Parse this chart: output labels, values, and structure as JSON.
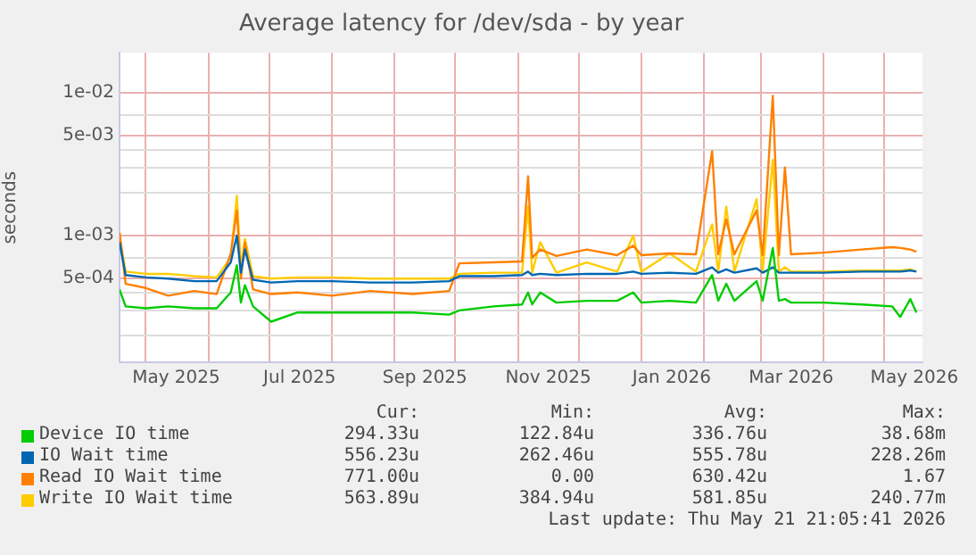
{
  "chart_data": {
    "type": "line",
    "title": "Average latency for /dev/sda - by year",
    "ylabel": "seconds",
    "log": "y",
    "grid": true,
    "legend": "bottom",
    "marker": "none",
    "line_style": "solid",
    "xlim": [
      "2025-04-18",
      "2026-05-20"
    ],
    "xticks": [
      {
        "value": "2025-05-01",
        "label": null
      },
      {
        "value": "2025-05-16",
        "label": "May 2025"
      },
      {
        "value": "2025-06-01",
        "label": null
      },
      {
        "value": "2025-07-01",
        "label": null
      },
      {
        "value": "2025-07-16",
        "label": "Jul 2025"
      },
      {
        "value": "2025-08-01",
        "label": null
      },
      {
        "value": "2025-09-01",
        "label": null
      },
      {
        "value": "2025-09-16",
        "label": "Sep 2025"
      },
      {
        "value": "2025-10-01",
        "label": null
      },
      {
        "value": "2025-11-01",
        "label": null
      },
      {
        "value": "2025-11-16",
        "label": "Nov 2025"
      },
      {
        "value": "2025-12-01",
        "label": null
      },
      {
        "value": "2026-01-01",
        "label": null
      },
      {
        "value": "2026-01-16",
        "label": "Jan 2026"
      },
      {
        "value": "2026-02-01",
        "label": null
      },
      {
        "value": "2026-03-01",
        "label": null
      },
      {
        "value": "2026-03-16",
        "label": "Mar 2026"
      },
      {
        "value": "2026-04-01",
        "label": null
      },
      {
        "value": "2026-05-01",
        "label": null
      },
      {
        "value": "2026-05-16",
        "label": "May 2026"
      }
    ],
    "ylim": [
      0.00013,
      0.019
    ],
    "yticks": [
      {
        "value": 0.0002,
        "label": null
      },
      {
        "value": 0.0003,
        "label": null
      },
      {
        "value": 0.0004,
        "label": null
      },
      {
        "value": 0.0005,
        "label": "5e-04"
      },
      {
        "value": 0.0007,
        "label": null
      },
      {
        "value": 0.001,
        "label": "1e-03"
      },
      {
        "value": 0.002,
        "label": null
      },
      {
        "value": 0.003,
        "label": null
      },
      {
        "value": 0.004,
        "label": null
      },
      {
        "value": 0.005,
        "label": "5e-03"
      },
      {
        "value": 0.007,
        "label": null
      },
      {
        "value": 0.01,
        "label": "1e-02"
      }
    ],
    "x": [
      "2025-04-18",
      "2025-04-21",
      "2025-05-01",
      "2025-05-12",
      "2025-05-25",
      "2025-06-05",
      "2025-06-12",
      "2025-06-15",
      "2025-06-17",
      "2025-06-19",
      "2025-06-23",
      "2025-07-02",
      "2025-07-15",
      "2025-08-01",
      "2025-08-20",
      "2025-09-10",
      "2025-09-28",
      "2025-10-03",
      "2025-10-20",
      "2025-11-03",
      "2025-11-06",
      "2025-11-08",
      "2025-11-12",
      "2025-11-20",
      "2025-12-05",
      "2025-12-20",
      "2025-12-28",
      "2026-01-01",
      "2026-01-15",
      "2026-01-28",
      "2026-02-05",
      "2026-02-08",
      "2026-02-12",
      "2026-02-16",
      "2026-02-27",
      "2026-03-02",
      "2026-03-07",
      "2026-03-10",
      "2026-03-13",
      "2026-03-16",
      "2026-04-01",
      "2026-04-20",
      "2026-05-05",
      "2026-05-09",
      "2026-05-14",
      "2026-05-17"
    ],
    "series": [
      {
        "name": "Device IO time",
        "color": "#00cc00",
        "values": [
          0.00042,
          0.00032,
          0.00031,
          0.00032,
          0.00031,
          0.00031,
          0.0004,
          0.00062,
          0.00034,
          0.00045,
          0.00032,
          0.00025,
          0.00029,
          0.00029,
          0.00029,
          0.00029,
          0.00028,
          0.0003,
          0.00032,
          0.00033,
          0.0004,
          0.00033,
          0.0004,
          0.00034,
          0.00035,
          0.00035,
          0.0004,
          0.00034,
          0.00035,
          0.00034,
          0.00053,
          0.00035,
          0.00046,
          0.00035,
          0.00048,
          0.00035,
          0.00082,
          0.00035,
          0.00036,
          0.00034,
          0.00034,
          0.00033,
          0.00032,
          0.00027,
          0.00036,
          0.00029
        ]
      },
      {
        "name": "IO Wait time",
        "color": "#0066b3",
        "values": [
          0.0009,
          0.00053,
          0.00051,
          0.0005,
          0.00048,
          0.00048,
          0.00065,
          0.001,
          0.00055,
          0.0008,
          0.00049,
          0.00047,
          0.00048,
          0.00048,
          0.00047,
          0.00047,
          0.00048,
          0.00052,
          0.00052,
          0.00053,
          0.00056,
          0.00053,
          0.00054,
          0.00053,
          0.00054,
          0.00054,
          0.00056,
          0.00054,
          0.00055,
          0.00054,
          0.0006,
          0.00055,
          0.00058,
          0.00055,
          0.00059,
          0.00055,
          0.0006,
          0.00055,
          0.00055,
          0.00055,
          0.00055,
          0.00056,
          0.00056,
          0.00056,
          0.00057,
          0.00056
        ]
      },
      {
        "name": "Read IO Wait time",
        "color": "#ff8000",
        "values": [
          0.00105,
          0.00046,
          0.00043,
          0.00038,
          0.00041,
          0.00039,
          0.00075,
          0.0015,
          0.0005,
          0.0009,
          0.00042,
          0.00039,
          0.0004,
          0.00038,
          0.00041,
          0.00039,
          0.00041,
          0.00064,
          0.00065,
          0.00066,
          0.0026,
          0.0007,
          0.0008,
          0.00072,
          0.0008,
          0.00073,
          0.00085,
          0.00073,
          0.00075,
          0.00074,
          0.0039,
          0.00074,
          0.0013,
          0.00074,
          0.0015,
          0.00073,
          0.0095,
          0.00073,
          0.003,
          0.00074,
          0.00076,
          0.0008,
          0.00083,
          0.00082,
          0.0008,
          0.00077
        ]
      },
      {
        "name": "Write IO Wait time",
        "color": "#ffcc00",
        "values": [
          0.001,
          0.00056,
          0.00054,
          0.00054,
          0.00052,
          0.00051,
          0.0007,
          0.0019,
          0.0006,
          0.00095,
          0.00052,
          0.0005,
          0.00051,
          0.00051,
          0.0005,
          0.0005,
          0.0005,
          0.00054,
          0.00055,
          0.00055,
          0.0016,
          0.00055,
          0.0009,
          0.00055,
          0.00065,
          0.00056,
          0.001,
          0.00056,
          0.00075,
          0.00056,
          0.0012,
          0.00056,
          0.0016,
          0.00056,
          0.0018,
          0.00056,
          0.0034,
          0.00056,
          0.0006,
          0.00056,
          0.00056,
          0.00057,
          0.00057,
          0.00057,
          0.00058,
          0.00056
        ]
      }
    ],
    "annotations": [
      "Cur:",
      "Min:",
      "Avg:",
      "Max:",
      "294.33u",
      "122.84u",
      "336.76u",
      "38.68m",
      "556.23u",
      "262.46u",
      "555.78u",
      "228.26m",
      "771.00u",
      "0.00",
      "630.42u",
      "1.67",
      "563.89u",
      "384.94u",
      "581.85u",
      "240.77m",
      "Last update: Thu May 21 21:05:41 2026"
    ]
  }
}
